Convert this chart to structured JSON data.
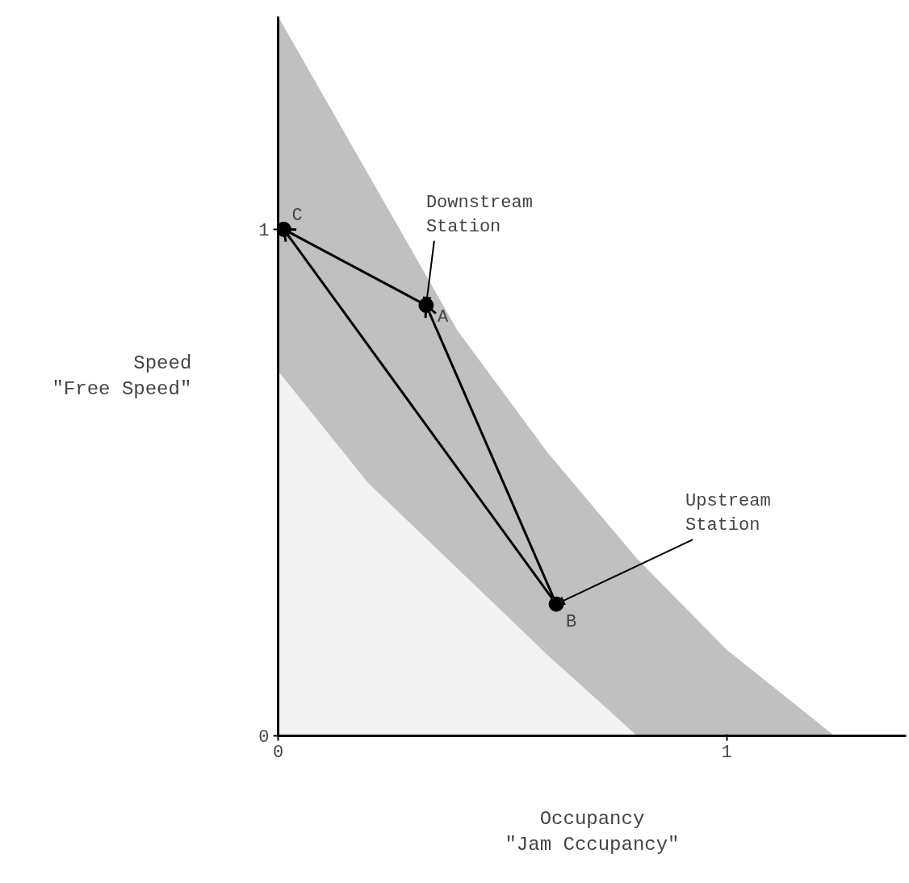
{
  "chart_data": {
    "type": "scatter",
    "xlabel": "Occupancy\n\"Jam Cccupancy\"",
    "ylabel": "Speed\n\"Free Speed\"",
    "stacked": true,
    "xlim": [
      0,
      1.4
    ],
    "ylim": [
      0,
      1.42
    ],
    "xticks": [
      0,
      1
    ],
    "yticks": [
      0,
      1
    ],
    "grid": false,
    "series": [
      {
        "type": "area",
        "color": "#f0f0f0",
        "x": [
          0.0,
          0.2,
          0.4,
          0.6,
          0.8,
          1.0,
          1.24
        ],
        "values": [
          0.72,
          0.5,
          0.33,
          0.16,
          0,
          0,
          0
        ]
      },
      {
        "type": "area",
        "color": "#b0b0b0",
        "x": [
          0.0,
          0.2,
          0.4,
          0.6,
          0.8,
          1.0,
          1.24
        ],
        "values": [
          0.7,
          0.61,
          0.47,
          0.4,
          0.35,
          0.17,
          0
        ]
      },
      {
        "type": "line",
        "color": "#000000",
        "x": [
          0.33,
          0.0125
        ],
        "values": [
          0.85,
          1.0
        ],
        "line_style": "solid"
      },
      {
        "type": "line",
        "color": "#000000",
        "x": [
          0.62,
          0.33
        ],
        "values": [
          0.26,
          0.85
        ],
        "line_style": "solid"
      },
      {
        "type": "line",
        "color": "#000000",
        "x": [
          0.62,
          0.0125
        ],
        "values": [
          0.26,
          1.0
        ],
        "line_style": "solid"
      },
      {
        "color": "#000000",
        "marker": "circle",
        "x": [
          0.0125,
          0.33,
          0.62
        ],
        "values": [
          1.0,
          0.85,
          0.26
        ],
        "value_labels": [
          "C",
          "A",
          "B"
        ]
      }
    ],
    "annotations": [
      {
        "text": "Downstream\nStation",
        "x": 0.33,
        "y": 0.85
      },
      {
        "text": "Upstream\nStation",
        "x": 0.62,
        "y": 0.26
      }
    ]
  }
}
